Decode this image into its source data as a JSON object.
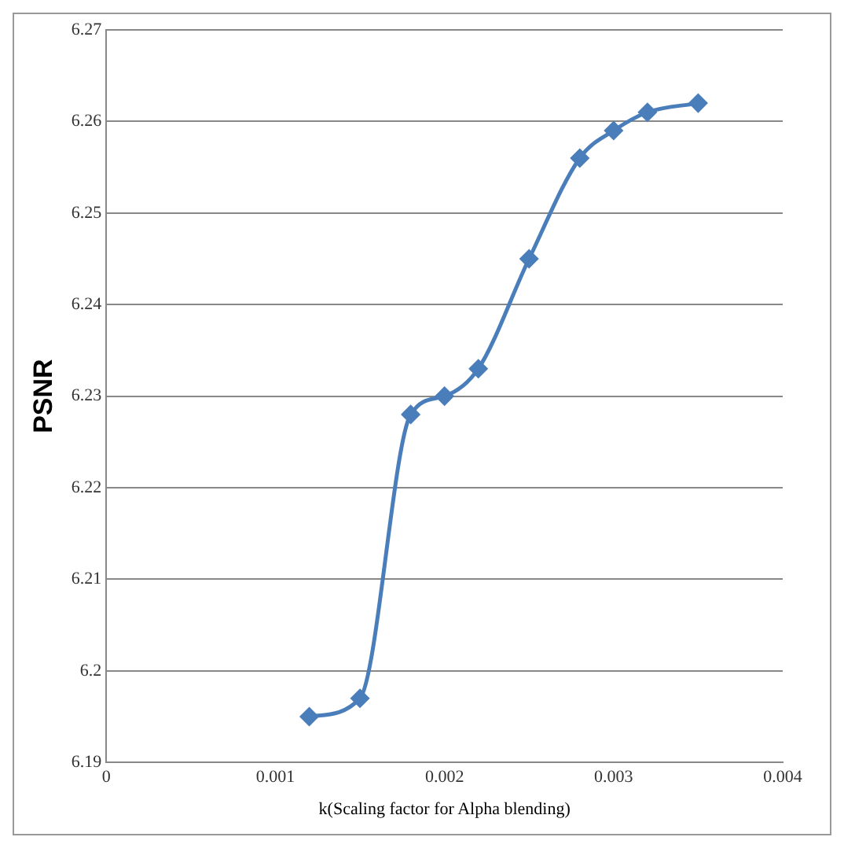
{
  "chart_data": {
    "type": "line",
    "xlabel": "k(Scaling factor for Alpha blending)",
    "ylabel": "PSNR",
    "x": [
      0.0012,
      0.0015,
      0.0018,
      0.002,
      0.0022,
      0.0025,
      0.0028,
      0.003,
      0.0032,
      0.0035
    ],
    "series": [
      {
        "color": "#4a7ebb",
        "values": [
          6.195,
          6.197,
          6.228,
          6.23,
          6.233,
          6.245,
          6.256,
          6.259,
          6.261,
          6.262
        ]
      }
    ],
    "xlim": [
      0,
      0.004
    ],
    "xticks": [
      0,
      0.001,
      0.002,
      0.003,
      0.004
    ],
    "ylim": [
      6.19,
      6.27
    ],
    "yticks": [
      6.19,
      6.2,
      6.21,
      6.22,
      6.23,
      6.24,
      6.25,
      6.26,
      6.27
    ],
    "grid": "y",
    "legend": false,
    "marker": "diamond",
    "line_style": "solid"
  }
}
